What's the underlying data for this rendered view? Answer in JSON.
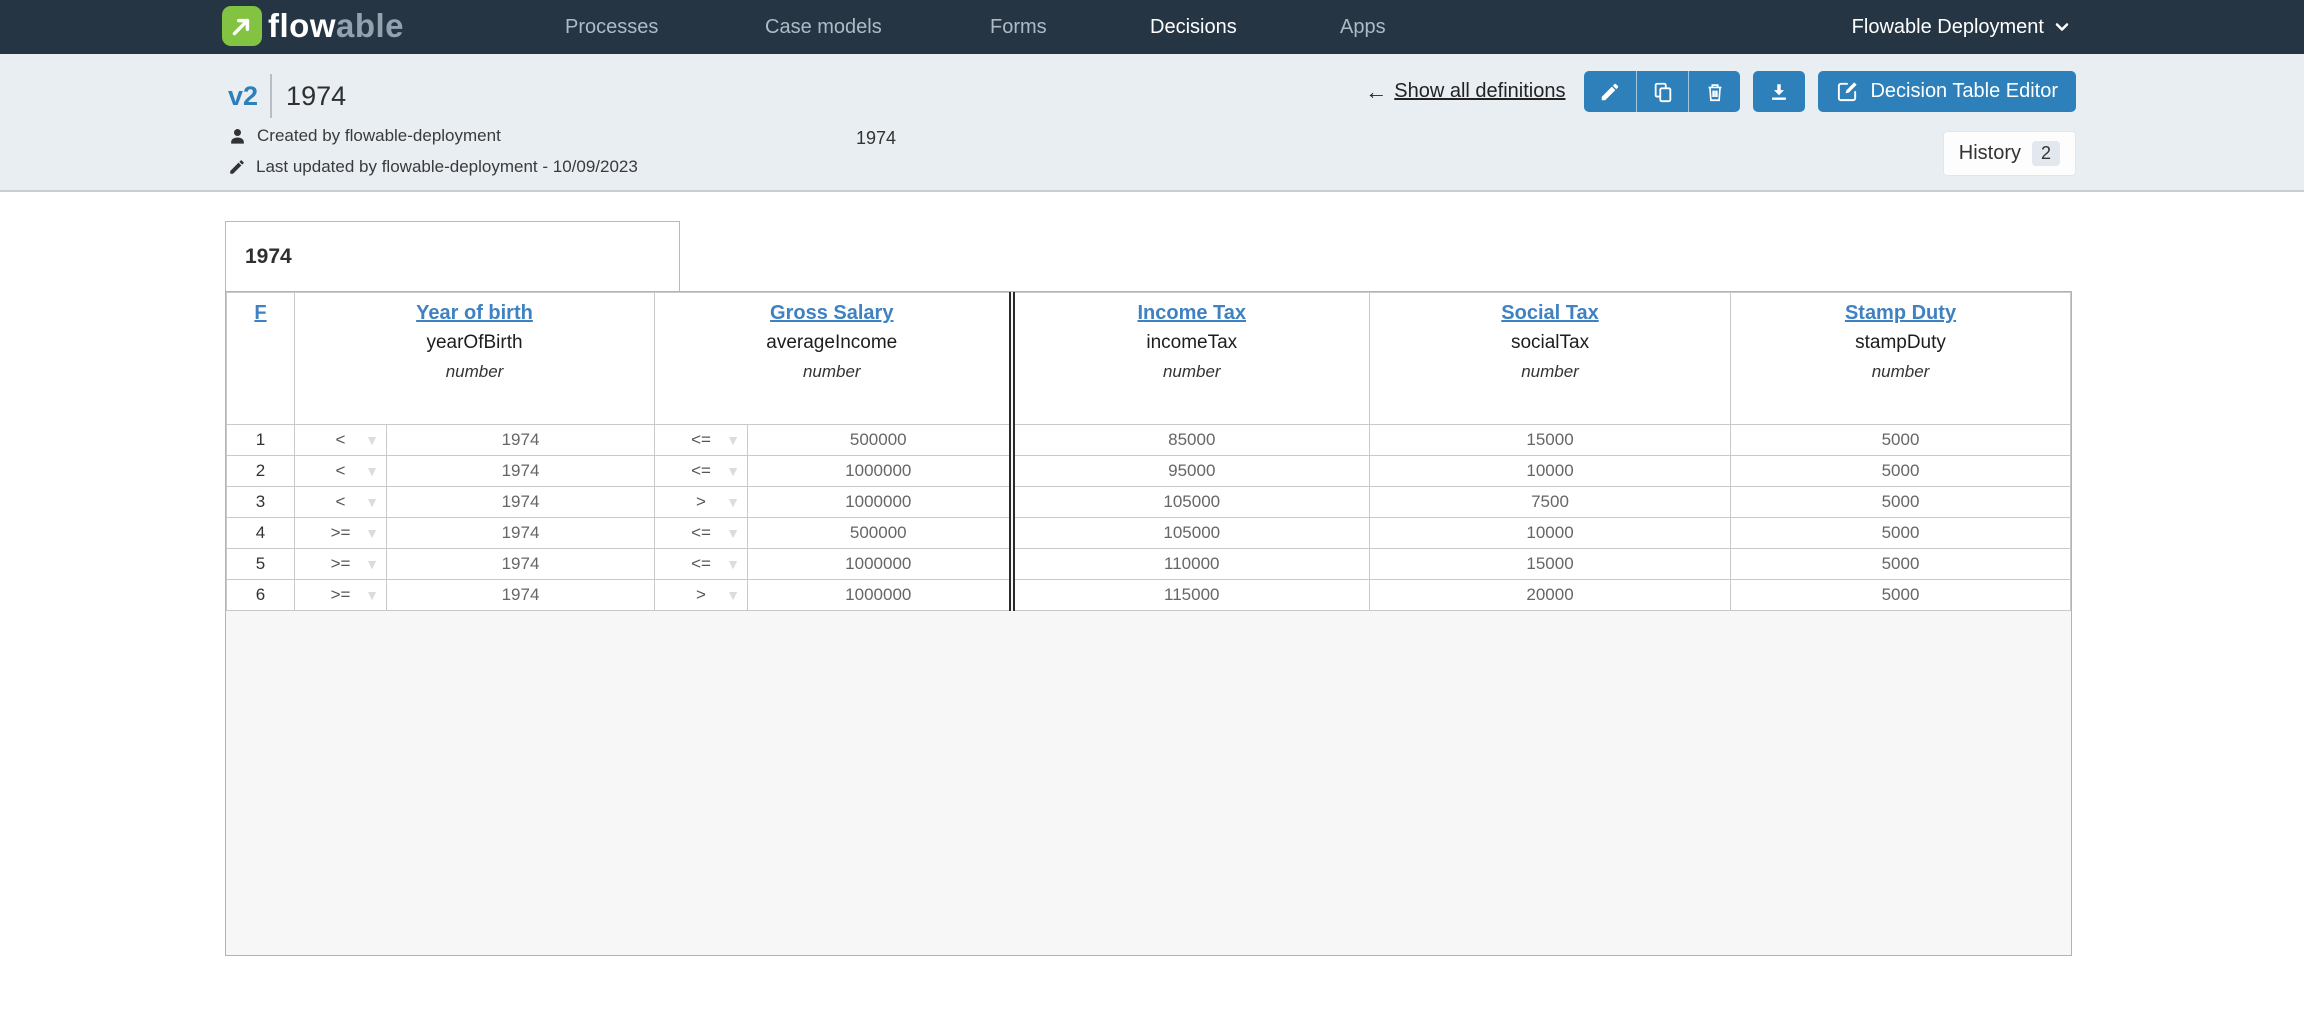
{
  "navbar": {
    "logo": {
      "brand_flow": "flow",
      "brand_able": "able"
    },
    "items": [
      {
        "label": "Processes",
        "active": false
      },
      {
        "label": "Case models",
        "active": false
      },
      {
        "label": "Forms",
        "active": false
      },
      {
        "label": "Decisions",
        "active": true
      },
      {
        "label": "Apps",
        "active": false
      }
    ],
    "deployment_label": "Flowable Deployment"
  },
  "header": {
    "version_badge": "v2",
    "title": "1974",
    "created_by": "Created by flowable-deployment",
    "last_updated": "Last updated by flowable-deployment - 10/09/2023",
    "description": "1974",
    "show_all_definitions_label": "Show all definitions",
    "back_arrow": "←",
    "decision_table_editor_label": "Decision Table Editor",
    "history_label": "History",
    "history_count": "2"
  },
  "decision_table": {
    "title": "1974",
    "hit_policy": "F",
    "columns": {
      "inputs": [
        {
          "label": "Year of birth",
          "property": "yearOfBirth",
          "type": "number"
        },
        {
          "label": "Gross Salary",
          "property": "averageIncome",
          "type": "number"
        }
      ],
      "outputs": [
        {
          "label": "Income Tax",
          "property": "incomeTax",
          "type": "number"
        },
        {
          "label": "Social Tax",
          "property": "socialTax",
          "type": "number"
        },
        {
          "label": "Stamp Duty",
          "property": "stampDuty",
          "type": "number"
        }
      ]
    },
    "rows": [
      {
        "num": "1",
        "inputs": [
          {
            "op": "<",
            "value": "1974"
          },
          {
            "op": "<=",
            "value": "500000"
          }
        ],
        "outputs": [
          "85000",
          "15000",
          "5000"
        ]
      },
      {
        "num": "2",
        "inputs": [
          {
            "op": "<",
            "value": "1974"
          },
          {
            "op": "<=",
            "value": "1000000"
          }
        ],
        "outputs": [
          "95000",
          "10000",
          "5000"
        ]
      },
      {
        "num": "3",
        "inputs": [
          {
            "op": "<",
            "value": "1974"
          },
          {
            "op": ">",
            "value": "1000000"
          }
        ],
        "outputs": [
          "105000",
          "7500",
          "5000"
        ]
      },
      {
        "num": "4",
        "inputs": [
          {
            "op": ">=",
            "value": "1974"
          },
          {
            "op": "<=",
            "value": "500000"
          }
        ],
        "outputs": [
          "105000",
          "10000",
          "5000"
        ]
      },
      {
        "num": "5",
        "inputs": [
          {
            "op": ">=",
            "value": "1974"
          },
          {
            "op": "<=",
            "value": "1000000"
          }
        ],
        "outputs": [
          "110000",
          "15000",
          "5000"
        ]
      },
      {
        "num": "6",
        "inputs": [
          {
            "op": ">=",
            "value": "1974"
          },
          {
            "op": ">",
            "value": "1000000"
          }
        ],
        "outputs": [
          "115000",
          "20000",
          "5000"
        ]
      }
    ],
    "dropdown_caret_glyph": "▼"
  },
  "colors": {
    "navbar_bg": "#253544",
    "accent_blue": "#2d80b9",
    "brand_green": "#82c341",
    "table_link_blue": "#3f81c1",
    "input_header_bg": "#d6e8ef",
    "output_header_bg": "#f0f0f0",
    "header_strip_bg": "#e9eef3"
  }
}
